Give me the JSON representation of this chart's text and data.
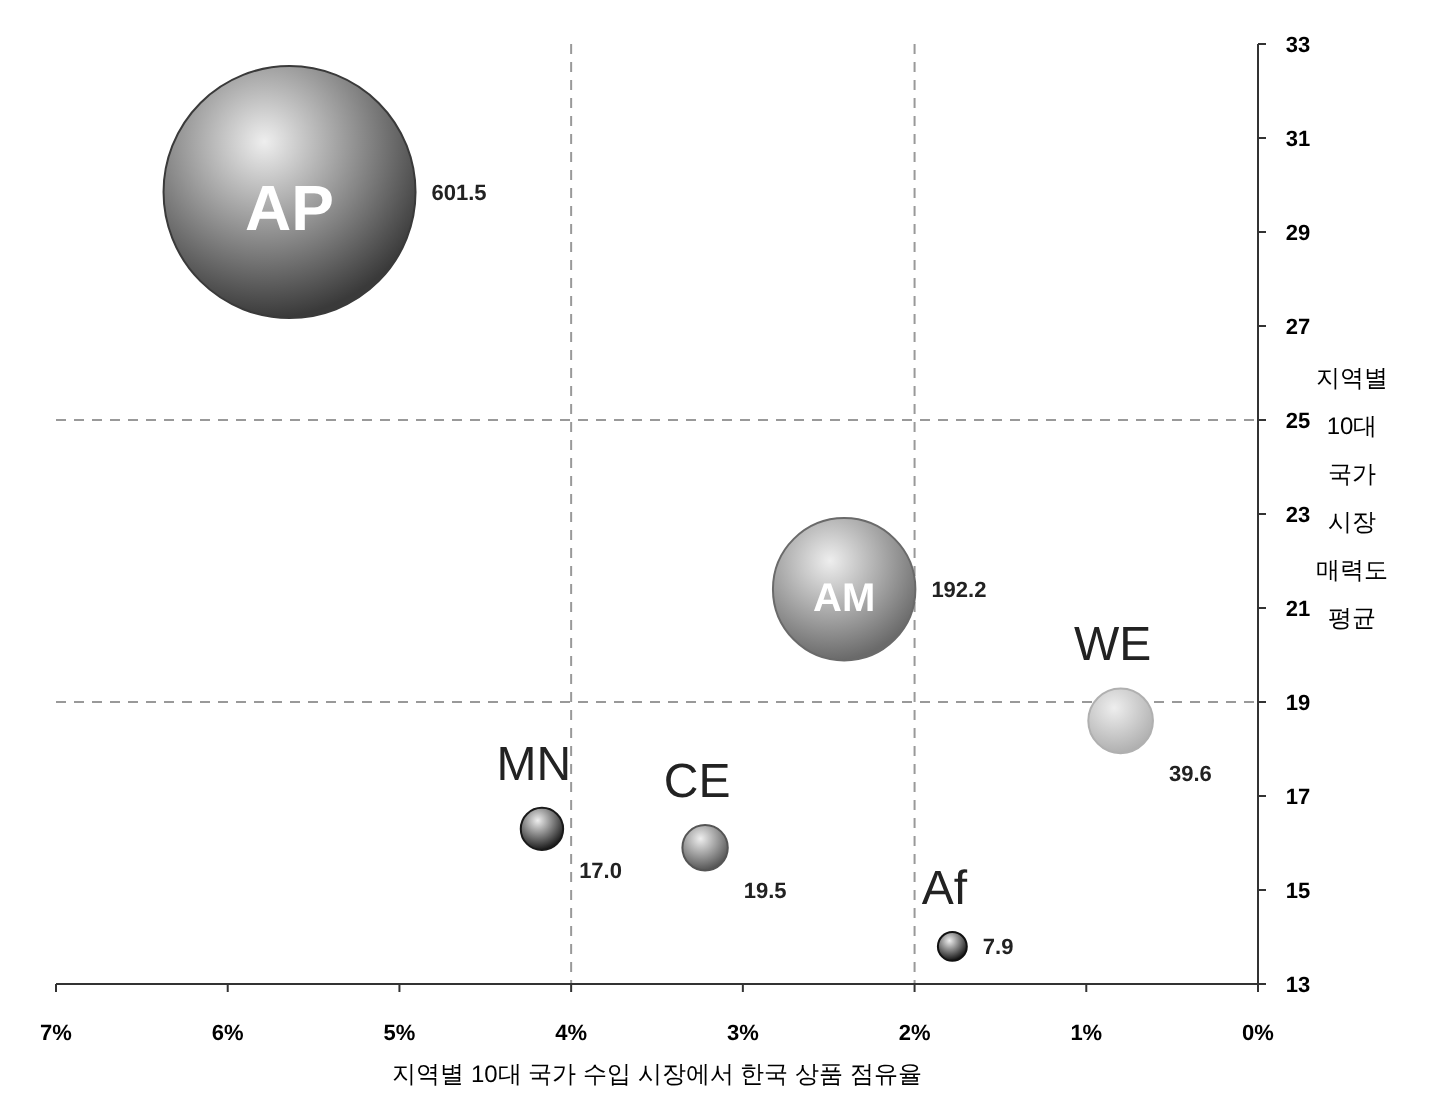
{
  "chart_data": {
    "type": "bubble",
    "xlabel": "지역별 10대 국가 수입 시장에서 한국 상품 점유율",
    "ylabel": "지역별 10대 국가 시장 매력도 평균",
    "xlim": [
      7,
      0
    ],
    "xticks": [
      {
        "value": 7,
        "label": "7%"
      },
      {
        "value": 6,
        "label": "6%"
      },
      {
        "value": 5,
        "label": "5%"
      },
      {
        "value": 4,
        "label": "4%"
      },
      {
        "value": 3,
        "label": "3%"
      },
      {
        "value": 2,
        "label": "2%"
      },
      {
        "value": 1,
        "label": "1%"
      },
      {
        "value": 0,
        "label": "0%"
      }
    ],
    "ylim": [
      13,
      33
    ],
    "yticks": [
      13,
      15,
      17,
      19,
      21,
      23,
      25,
      27,
      29,
      31,
      33
    ],
    "series": [
      {
        "name": "AP",
        "color": "#3a3a3a",
        "x": [
          5.64
        ],
        "values": [
          29.85
        ],
        "sizes": [
          601.5
        ],
        "value_labels": [
          "601.5"
        ]
      },
      {
        "name": "AM",
        "color": "#6a6a6a",
        "x": [
          2.41
        ],
        "values": [
          21.4
        ],
        "sizes": [
          192.2
        ],
        "value_labels": [
          "192.2"
        ]
      },
      {
        "name": "WE",
        "color": "#b0b0b0",
        "x": [
          0.8
        ],
        "values": [
          18.6
        ],
        "sizes": [
          39.6
        ],
        "value_labels": [
          "39.6"
        ]
      },
      {
        "name": "MN",
        "color": "#1a1a1a",
        "x": [
          4.17
        ],
        "values": [
          16.3
        ],
        "sizes": [
          17.0
        ],
        "value_labels": [
          "17.0"
        ]
      },
      {
        "name": "CE",
        "color": "#555555",
        "x": [
          3.22
        ],
        "values": [
          15.9
        ],
        "sizes": [
          19.5
        ],
        "value_labels": [
          "19.5"
        ]
      },
      {
        "name": "Af",
        "color": "#111111",
        "x": [
          1.78
        ],
        "values": [
          13.8
        ],
        "sizes": [
          7.9
        ],
        "value_labels": [
          "7.9"
        ]
      }
    ],
    "ref_lines": [
      {
        "axis": "x",
        "value": 4.0,
        "line_style": "dashed"
      },
      {
        "axis": "x",
        "value": 2.0,
        "line_style": "dashed"
      },
      {
        "axis": "y",
        "value": 25,
        "line_style": "dashed"
      },
      {
        "axis": "y",
        "value": 19,
        "line_style": "dashed"
      }
    ]
  }
}
